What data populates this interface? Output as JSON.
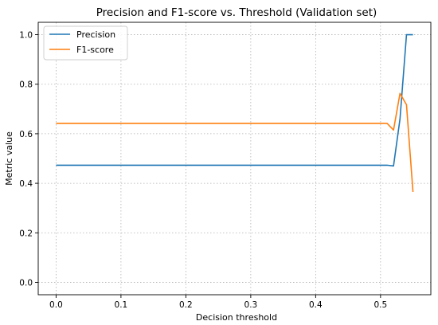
{
  "chart_data": {
    "type": "line",
    "title": "Precision and F1-score vs. Threshold (Validation set)",
    "xlabel": "Decision threshold",
    "ylabel": "Metric value",
    "xlim": [
      -0.0275,
      0.5775
    ],
    "ylim": [
      -0.05,
      1.05
    ],
    "xticks": [
      0.0,
      0.1,
      0.2,
      0.3,
      0.4,
      0.5
    ],
    "xtick_labels": [
      "0.0",
      "0.1",
      "0.2",
      "0.3",
      "0.4",
      "0.5"
    ],
    "yticks": [
      0.0,
      0.2,
      0.4,
      0.6,
      0.8,
      1.0
    ],
    "ytick_labels": [
      "0.0",
      "0.2",
      "0.4",
      "0.6",
      "0.8",
      "1.0"
    ],
    "grid": true,
    "legend_position": "top-left",
    "x": [
      0.0,
      0.01,
      0.02,
      0.03,
      0.04,
      0.05,
      0.06,
      0.07,
      0.08,
      0.09,
      0.1,
      0.11,
      0.12,
      0.13,
      0.14,
      0.15,
      0.16,
      0.17,
      0.18,
      0.19,
      0.2,
      0.21,
      0.22,
      0.23,
      0.24,
      0.25,
      0.26,
      0.27,
      0.28,
      0.29,
      0.3,
      0.31,
      0.32,
      0.33,
      0.34,
      0.35,
      0.36,
      0.37,
      0.38,
      0.39,
      0.4,
      0.41,
      0.42,
      0.43,
      0.44,
      0.45,
      0.46,
      0.47,
      0.48,
      0.49,
      0.5,
      0.51,
      0.52,
      0.53,
      0.54,
      0.55
    ],
    "series": [
      {
        "name": "Precision",
        "color": "#1f77b4",
        "values": [
          0.473,
          0.473,
          0.473,
          0.473,
          0.473,
          0.473,
          0.473,
          0.473,
          0.473,
          0.473,
          0.473,
          0.473,
          0.473,
          0.473,
          0.473,
          0.473,
          0.473,
          0.473,
          0.473,
          0.473,
          0.473,
          0.473,
          0.473,
          0.473,
          0.473,
          0.473,
          0.473,
          0.473,
          0.473,
          0.473,
          0.473,
          0.473,
          0.473,
          0.473,
          0.473,
          0.473,
          0.473,
          0.473,
          0.473,
          0.473,
          0.473,
          0.473,
          0.473,
          0.473,
          0.473,
          0.473,
          0.473,
          0.473,
          0.473,
          0.473,
          0.473,
          0.473,
          0.47,
          0.66,
          1.0,
          1.0
        ]
      },
      {
        "name": "F1-score",
        "color": "#ff7f0e",
        "values": [
          0.642,
          0.642,
          0.642,
          0.642,
          0.642,
          0.642,
          0.642,
          0.642,
          0.642,
          0.642,
          0.642,
          0.642,
          0.642,
          0.642,
          0.642,
          0.642,
          0.642,
          0.642,
          0.642,
          0.642,
          0.642,
          0.642,
          0.642,
          0.642,
          0.642,
          0.642,
          0.642,
          0.642,
          0.642,
          0.642,
          0.642,
          0.642,
          0.642,
          0.642,
          0.642,
          0.642,
          0.642,
          0.642,
          0.642,
          0.642,
          0.642,
          0.642,
          0.642,
          0.642,
          0.642,
          0.642,
          0.642,
          0.642,
          0.642,
          0.642,
          0.642,
          0.642,
          0.615,
          0.763,
          0.717,
          0.365
        ]
      }
    ]
  }
}
